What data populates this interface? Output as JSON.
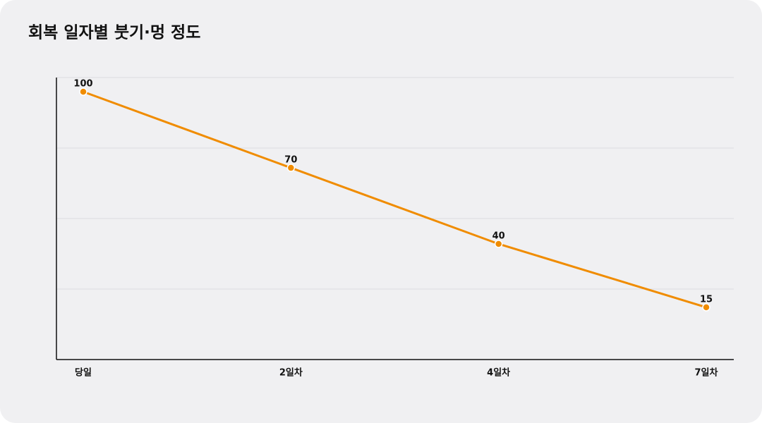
{
  "chart_data": {
    "type": "line",
    "title": "회복 일자별 붓기·멍 정도",
    "categories": [
      "당일",
      "2일차",
      "4일차",
      "7일차"
    ],
    "values": [
      100,
      70,
      40,
      15
    ],
    "color": "#f08c00",
    "ylim": [
      -5.6,
      105.6
    ],
    "grid": true
  }
}
